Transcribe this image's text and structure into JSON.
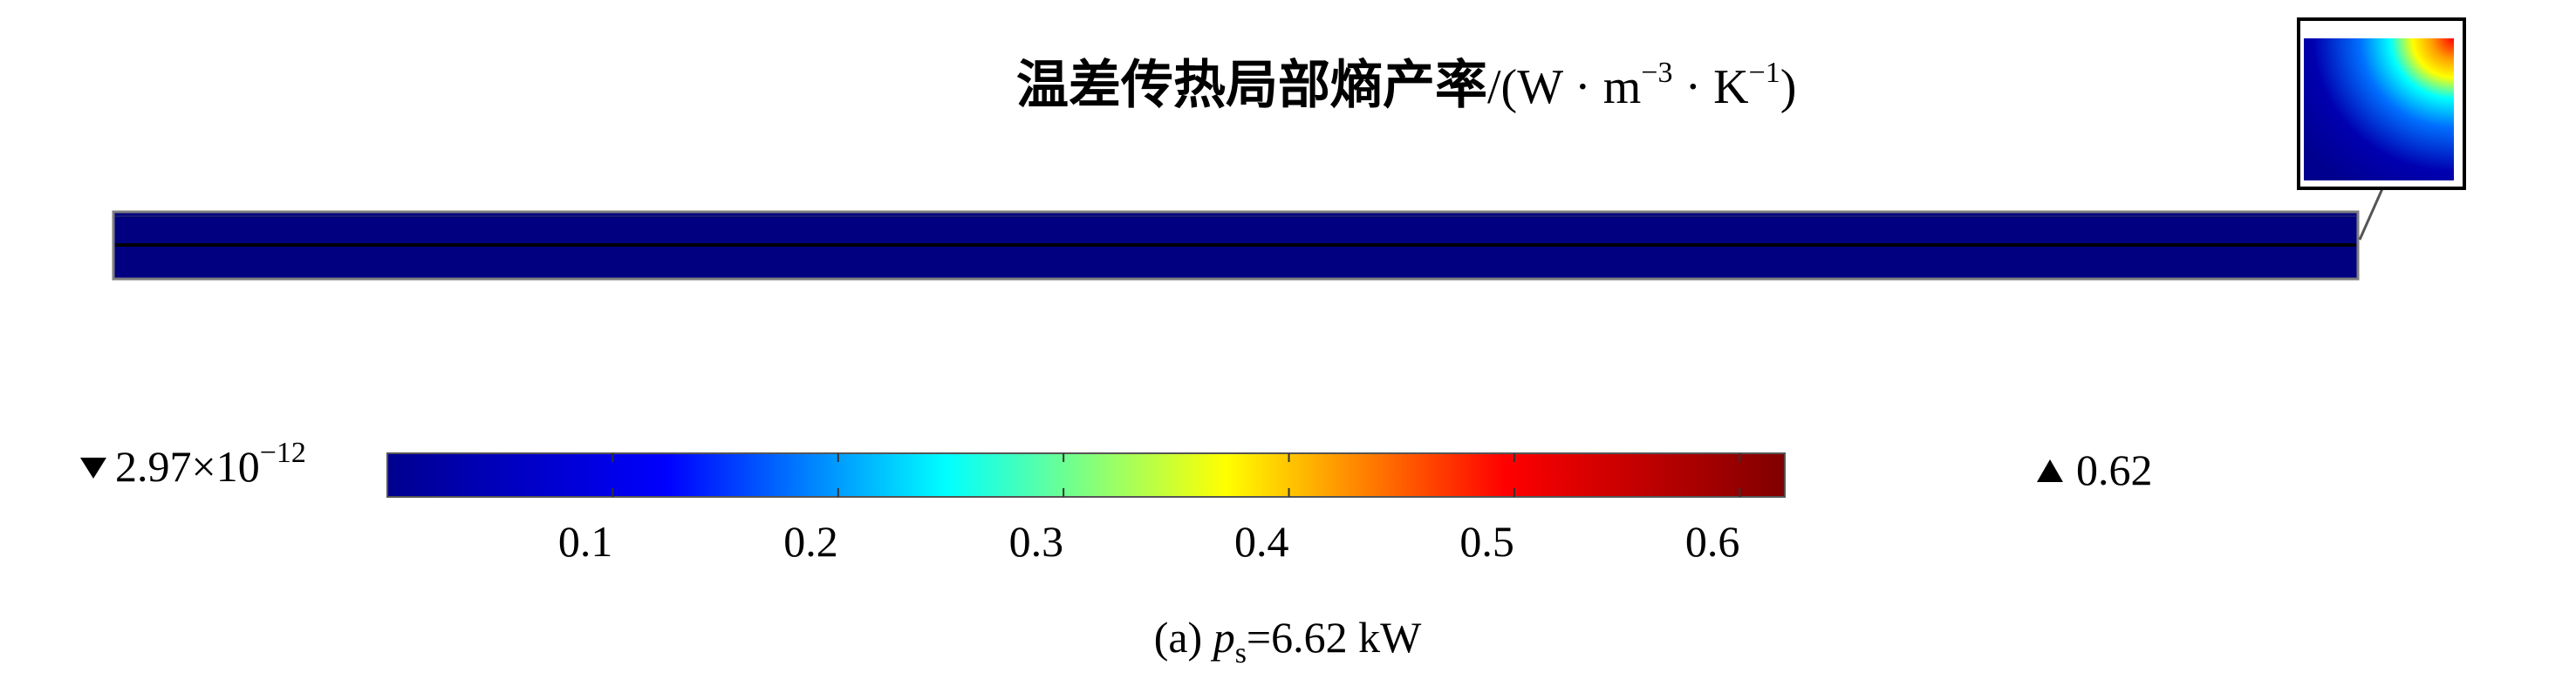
{
  "chart_data": {
    "type": "heatmap",
    "title": "温差传热局部熵产率/(W·m⁻³·K⁻¹)",
    "title_main": "温差传热局部熵产率",
    "title_unit_open": "/(W · m",
    "title_unit_exp1": "−3",
    "title_unit_mid": " · K",
    "title_unit_exp2": "−1",
    "title_unit_close": ")",
    "colorbar": {
      "min_label_mantissa": "2.97×10",
      "min_label_exponent": "−12",
      "min": 2.97e-12,
      "max_label": "0.62",
      "max": 0.62,
      "ticks": [
        0.1,
        0.2,
        0.3,
        0.4,
        0.5,
        0.6
      ],
      "tick_labels": [
        "0.1",
        "0.2",
        "0.3",
        "0.4",
        "0.5",
        "0.6"
      ],
      "colormap": [
        "#00008f",
        "#0000ff",
        "#00ffff",
        "#ffff00",
        "#ff0000",
        "#800000"
      ]
    },
    "field_color": "#000080",
    "caption_prefix": "(a) ",
    "caption_var": "p",
    "caption_sub": "s",
    "caption_suffix": "=6.62 kW"
  },
  "colors": {
    "strip_fill": "#000080",
    "strip_line": "#000000",
    "border": "#7f7f7f"
  }
}
